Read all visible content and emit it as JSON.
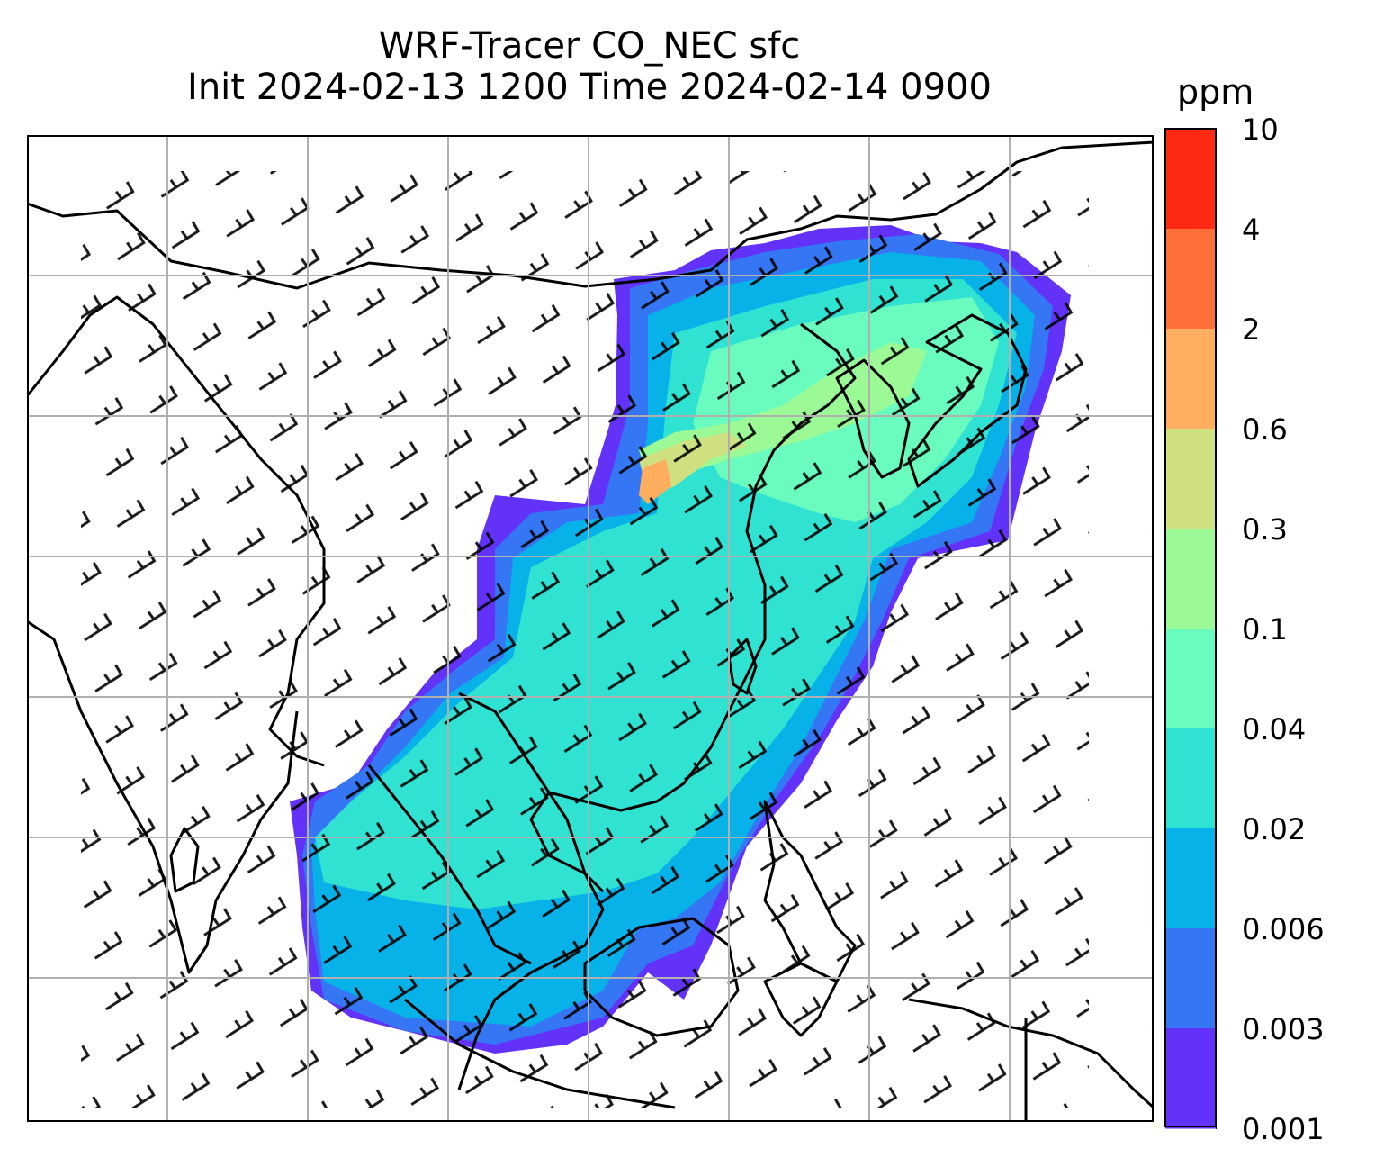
{
  "title": {
    "line1": "WRF-Tracer CO_NEC sfc",
    "line2": "Init 2024-02-13 1200 Time 2024-02-14 0900"
  },
  "colorbar": {
    "unit": "ppm",
    "levels": [
      "10",
      "4",
      "2",
      "0.6",
      "0.3",
      "0.1",
      "0.04",
      "0.02",
      "0.006",
      "0.003",
      "0.001"
    ],
    "colors": [
      "#ff2a14",
      "#ff6f3a",
      "#ffae60",
      "#cfe080",
      "#9bfa96",
      "#6afcbe",
      "#30e2d2",
      "#06b2e8",
      "#3476f4",
      "#6232f8"
    ]
  },
  "map": {
    "region": "East and Southeast Asia",
    "field": "CO_NEC surface tracer concentration",
    "overlays": [
      "coastlines",
      "country borders",
      "gridlines",
      "wind barbs"
    ],
    "gridline_color": "#b0b0b0"
  }
}
